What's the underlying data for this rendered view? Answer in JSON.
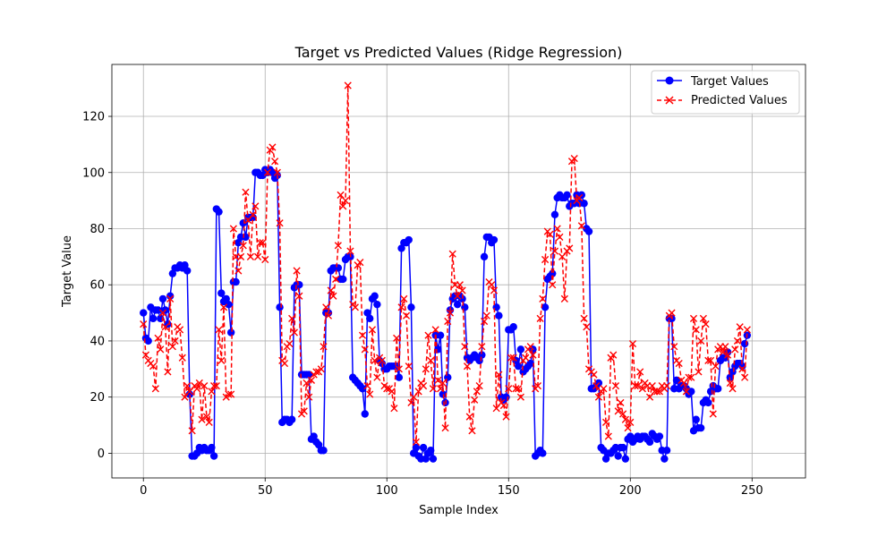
{
  "chart_data": {
    "type": "line",
    "title": "Target vs Predicted Values (Ridge Regression)",
    "xlabel": "Sample Index",
    "ylabel": "Target Value",
    "xlim": [
      -12.95,
      271.95
    ],
    "ylim": [
      -8.8,
      138.5
    ],
    "xticks": [
      0,
      50,
      100,
      150,
      200,
      250
    ],
    "yticks": [
      0,
      20,
      40,
      60,
      80,
      100,
      120
    ],
    "grid": true,
    "legend": "top-right",
    "series": [
      {
        "name": "Target Values",
        "color": "#0000ff",
        "linestyle": "solid",
        "marker": "circle",
        "values": [
          50,
          41,
          40,
          52,
          48,
          51,
          51,
          48,
          55,
          51,
          46,
          56,
          64,
          66,
          66,
          67,
          66,
          67,
          65,
          21,
          -1,
          -1,
          0,
          2,
          1,
          2,
          1,
          1,
          2,
          -1,
          87,
          86,
          57,
          54,
          55,
          53,
          43,
          61,
          61,
          75,
          77,
          82,
          77,
          84,
          84,
          84,
          100,
          100,
          99,
          99,
          101,
          100,
          101,
          100,
          98,
          99,
          52,
          11,
          12,
          12,
          11,
          12,
          59,
          60,
          60,
          28,
          28,
          28,
          28,
          5,
          6,
          4,
          3,
          1,
          1,
          50,
          50,
          65,
          66,
          66,
          66,
          62,
          62,
          69,
          70,
          70,
          27,
          26,
          25,
          24,
          23,
          14,
          50,
          48,
          55,
          56,
          53,
          33,
          32,
          30,
          30,
          31,
          31,
          31,
          31,
          27,
          73,
          75,
          75,
          76,
          52,
          0,
          2,
          -1,
          -2,
          2,
          -2,
          0,
          1,
          -2,
          42,
          37,
          42,
          21,
          18,
          27,
          51,
          55,
          56,
          53,
          56,
          55,
          52,
          34,
          33,
          34,
          35,
          34,
          33,
          35,
          70,
          77,
          77,
          75,
          76,
          52,
          49,
          20,
          19,
          20,
          44,
          44,
          45,
          33,
          31,
          37,
          29,
          30,
          31,
          32,
          37,
          -1,
          0,
          1,
          0,
          52,
          62,
          63,
          64,
          85,
          91,
          92,
          91,
          91,
          92,
          88,
          89,
          89,
          92,
          89,
          92,
          89,
          80,
          79,
          23,
          23,
          24,
          25,
          2,
          1,
          -2,
          0,
          0,
          1,
          2,
          -1,
          2,
          2,
          -2,
          5,
          6,
          4,
          5,
          6,
          5,
          6,
          6,
          5,
          4,
          7,
          6,
          5,
          6,
          1,
          -2,
          1,
          48,
          48,
          23,
          26,
          23,
          24,
          24,
          23,
          21,
          22,
          8,
          12,
          9,
          9,
          18,
          19,
          18,
          22,
          24,
          23,
          23,
          33,
          34,
          34,
          36,
          27,
          29,
          31,
          32,
          32,
          31,
          39,
          42
        ]
      },
      {
        "name": "Predicted Values",
        "color": "#ff0000",
        "linestyle": "dashed",
        "marker": "x",
        "values": [
          46,
          35,
          33,
          32,
          31,
          23,
          41,
          37,
          50,
          45,
          29,
          55,
          38,
          40,
          45,
          44,
          34,
          20,
          24,
          22,
          8,
          24,
          23,
          25,
          12,
          24,
          13,
          11,
          22,
          24,
          24,
          44,
          33,
          52,
          20,
          21,
          21,
          80,
          70,
          65,
          70,
          74,
          93,
          83,
          70,
          85,
          88,
          70,
          75,
          75,
          69,
          100,
          108,
          109,
          104,
          100,
          82,
          33,
          32,
          38,
          39,
          48,
          43,
          65,
          56,
          14,
          15,
          25,
          20,
          26,
          28,
          29,
          29,
          30,
          38,
          52,
          49,
          58,
          56,
          62,
          74,
          92,
          88,
          90,
          131,
          72,
          53,
          52,
          67,
          68,
          42,
          37,
          24,
          21,
          44,
          33,
          27,
          34,
          33,
          24,
          23,
          23,
          22,
          16,
          41,
          30,
          52,
          55,
          49,
          31,
          18,
          20,
          4,
          22,
          25,
          24,
          30,
          42,
          33,
          23,
          44,
          26,
          23,
          25,
          9,
          47,
          50,
          71,
          60,
          56,
          60,
          58,
          38,
          31,
          13,
          8,
          19,
          22,
          24,
          38,
          47,
          49,
          61,
          60,
          58,
          16,
          28,
          18,
          17,
          13,
          23,
          34,
          34,
          23,
          23,
          20,
          33,
          34,
          37,
          38,
          35,
          23,
          24,
          48,
          55,
          69,
          79,
          78,
          60,
          72,
          80,
          77,
          70,
          55,
          72,
          73,
          104,
          105,
          90,
          91,
          81,
          48,
          45,
          30,
          29,
          28,
          24,
          20,
          22,
          23,
          11,
          6,
          34,
          35,
          24,
          15,
          18,
          14,
          12,
          9,
          11,
          39,
          24,
          24,
          29,
          23,
          25,
          24,
          20,
          24,
          22,
          22,
          22,
          24,
          23,
          24,
          49,
          50,
          38,
          33,
          32,
          26,
          25,
          22,
          27,
          27,
          48,
          44,
          29,
          40,
          48,
          46,
          33,
          33,
          14,
          31,
          37,
          38,
          36,
          38,
          35,
          25,
          23,
          37,
          40,
          45,
          30,
          27,
          44
        ]
      }
    ]
  }
}
